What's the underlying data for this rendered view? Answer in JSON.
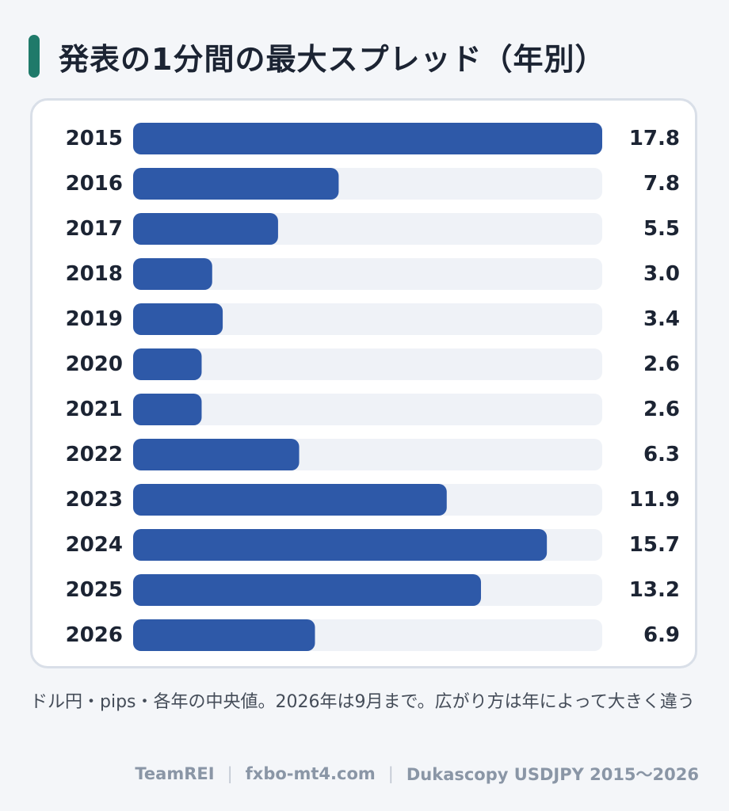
{
  "title": "発表の1分間の最大スプレッド（年別）",
  "colors": {
    "accent": "#1f7a6a",
    "bar": "#2e59a8",
    "track": "#eff2f7",
    "text": "#1c2433"
  },
  "chart_data": {
    "type": "bar",
    "orientation": "horizontal",
    "categories": [
      "2015",
      "2016",
      "2017",
      "2018",
      "2019",
      "2020",
      "2021",
      "2022",
      "2023",
      "2024",
      "2025",
      "2026"
    ],
    "values": [
      17.8,
      7.8,
      5.5,
      3.0,
      3.4,
      2.6,
      2.6,
      6.3,
      11.9,
      15.7,
      13.2,
      6.9
    ],
    "value_labels": [
      "17.8",
      "7.8",
      "5.5",
      "3.0",
      "3.4",
      "2.6",
      "2.6",
      "6.3",
      "11.9",
      "15.7",
      "13.2",
      "6.9"
    ],
    "xlim": [
      0,
      17.8
    ],
    "grid": false,
    "legend": "none"
  },
  "note": "ドル円・pips・各年の中央値。2026年は9月まで。広がり方は年によって大きく違う",
  "footer": {
    "author": "TeamREI",
    "site": "fxbo-mt4.com",
    "source": "Dukascopy USDJPY 2015〜2026"
  }
}
